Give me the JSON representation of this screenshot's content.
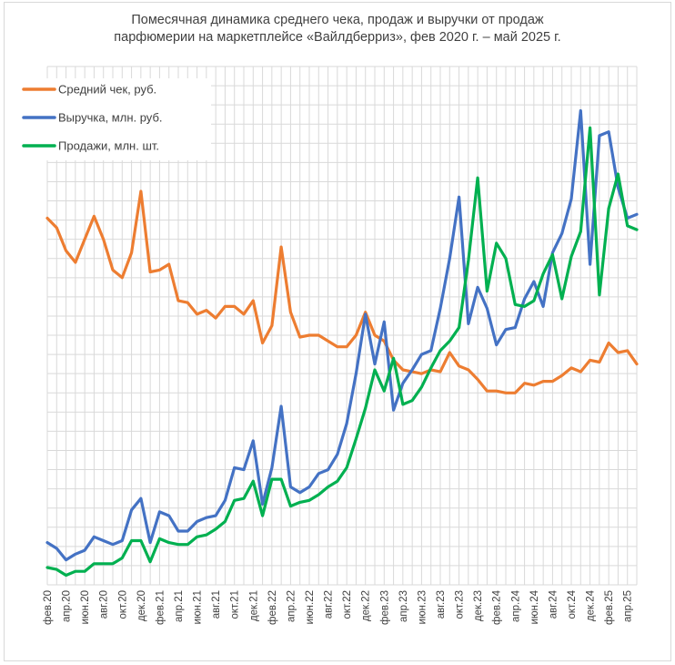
{
  "chart_data": {
    "type": "line",
    "title_line1": "Помесячная динамика  среднего чека, продаж и выручки от продаж",
    "title_line2": "парфюмерии на маркетплейсе «Вайлдберриз», фев 2020 г. – май 2025 г.",
    "x": [
      "фев.20",
      "мар.20",
      "апр.20",
      "май.20",
      "июн.20",
      "июл.20",
      "авг.20",
      "сен.20",
      "окт.20",
      "ноя.20",
      "дек.20",
      "янв.21",
      "фев.21",
      "мар.21",
      "апр.21",
      "май.21",
      "июн.21",
      "июл.21",
      "авг.21",
      "сен.21",
      "окт.21",
      "ноя.21",
      "дек.21",
      "янв.22",
      "фев.22",
      "мар.22",
      "апр.22",
      "май.22",
      "июн.22",
      "июл.22",
      "авг.22",
      "сен.22",
      "окт.22",
      "ноя.22",
      "дек.22",
      "янв.23",
      "фев.23",
      "мар.23",
      "апр.23",
      "май.23",
      "июн.23",
      "июл.23",
      "авг.23",
      "сен.23",
      "окт.23",
      "ноя.23",
      "дек.23",
      "янв.24",
      "фев.24",
      "мар.24",
      "апр.24",
      "май.24",
      "июн.24",
      "июл.24",
      "авг.24",
      "сен.24",
      "окт.24",
      "ноя.24",
      "дек.24",
      "янв.25",
      "фев.25",
      "мар.25",
      "апр.25",
      "май.25"
    ],
    "tick_labels": [
      "фев.20",
      "апр.20",
      "июн.20",
      "авг.20",
      "окт.20",
      "дек.20",
      "фев.21",
      "апр.21",
      "июн.21",
      "авг.21",
      "окт.21",
      "дек.21",
      "фев.22",
      "апр.22",
      "июн.22",
      "авг.22",
      "окт.22",
      "дек.22",
      "фев.23",
      "апр.23",
      "июн.23",
      "авг.23",
      "окт.23",
      "дек.23",
      "фев.24",
      "апр.24",
      "июн.24",
      "авг.24",
      "окт.24",
      "дек.24",
      "фев.25",
      "апр.25"
    ],
    "y_range": [
      0,
      27
    ],
    "grid": true,
    "legend_position": "top-left",
    "series": [
      {
        "name": "Средний чек, руб.",
        "color": "#ED7D31",
        "values": [
          19.1,
          18.6,
          17.4,
          16.8,
          18.0,
          19.2,
          18.0,
          16.4,
          16.0,
          17.3,
          20.5,
          16.3,
          16.4,
          16.7,
          14.8,
          14.7,
          14.1,
          14.3,
          13.9,
          14.5,
          14.5,
          14.1,
          14.8,
          12.6,
          13.5,
          17.6,
          14.2,
          12.9,
          13.0,
          13.0,
          12.7,
          12.4,
          12.4,
          13.0,
          14.2,
          13.0,
          12.7,
          11.7,
          11.2,
          11.1,
          11.0,
          11.2,
          11.1,
          12.1,
          11.4,
          11.2,
          10.7,
          10.1,
          10.1,
          10.0,
          10.0,
          10.5,
          10.4,
          10.6,
          10.6,
          10.9,
          11.3,
          11.1,
          11.7,
          11.6,
          12.6,
          12.1,
          12.2,
          11.5
        ]
      },
      {
        "name": "Выручка, млн. руб.",
        "color": "#4472C4",
        "values": [
          2.2,
          1.9,
          1.3,
          1.6,
          1.8,
          2.5,
          2.3,
          2.1,
          2.3,
          3.9,
          4.5,
          2.2,
          3.8,
          3.6,
          2.8,
          2.8,
          3.3,
          3.5,
          3.6,
          4.4,
          6.1,
          6.0,
          7.5,
          4.2,
          6.1,
          9.3,
          5.1,
          4.8,
          5.1,
          5.8,
          6.0,
          6.8,
          8.4,
          11.0,
          14.1,
          11.5,
          13.7,
          9.1,
          10.5,
          11.2,
          12.0,
          12.2,
          14.4,
          17.0,
          20.2,
          13.6,
          15.5,
          14.4,
          12.5,
          13.3,
          13.4,
          14.9,
          15.8,
          14.5,
          17.3,
          18.3,
          20.1,
          24.7,
          16.7,
          23.4,
          23.6,
          20.7,
          19.1,
          19.3
        ]
      },
      {
        "name": "Продажи, млн. шт.",
        "color": "#00B050",
        "values": [
          0.9,
          0.8,
          0.5,
          0.7,
          0.7,
          1.1,
          1.1,
          1.1,
          1.4,
          2.3,
          2.3,
          1.2,
          2.4,
          2.2,
          2.1,
          2.1,
          2.5,
          2.6,
          2.9,
          3.3,
          4.4,
          4.5,
          5.4,
          3.6,
          5.5,
          5.5,
          4.1,
          4.3,
          4.4,
          4.7,
          5.1,
          5.4,
          6.1,
          7.6,
          9.2,
          11.2,
          10.1,
          11.8,
          9.4,
          9.6,
          10.3,
          11.3,
          12.2,
          12.7,
          13.4,
          16.9,
          21.2,
          15.3,
          17.8,
          17.0,
          14.6,
          14.5,
          14.8,
          16.2,
          17.2,
          14.9,
          17.1,
          18.4,
          23.8,
          15.1,
          19.6,
          21.4,
          18.7,
          18.5
        ]
      }
    ]
  }
}
